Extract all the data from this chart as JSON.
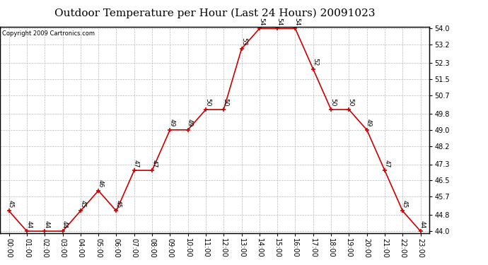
{
  "title": "Outdoor Temperature per Hour (Last 24 Hours) 20091023",
  "copyright": "Copyright 2009 Cartronics.com",
  "hours": [
    "00:00",
    "01:00",
    "02:00",
    "03:00",
    "04:00",
    "05:00",
    "06:00",
    "07:00",
    "08:00",
    "09:00",
    "10:00",
    "11:00",
    "12:00",
    "13:00",
    "14:00",
    "15:00",
    "16:00",
    "17:00",
    "18:00",
    "19:00",
    "20:00",
    "21:00",
    "22:00",
    "23:00"
  ],
  "temps": [
    45,
    44,
    44,
    44,
    45,
    46,
    45,
    47,
    47,
    49,
    49,
    50,
    50,
    53,
    54,
    54,
    54,
    52,
    50,
    50,
    49,
    47,
    45,
    44
  ],
  "ylim_min": 44.0,
  "ylim_max": 54.0,
  "yticks": [
    44.0,
    44.8,
    45.7,
    46.5,
    47.3,
    48.2,
    49.0,
    49.8,
    50.7,
    51.5,
    52.3,
    53.2,
    54.0
  ],
  "line_color": "#cc0000",
  "marker_color": "#cc0000",
  "bg_color": "#ffffff",
  "grid_color": "#bbbbbb",
  "title_fontsize": 11,
  "tick_fontsize": 7,
  "annot_fontsize": 6.5,
  "copyright_fontsize": 6
}
